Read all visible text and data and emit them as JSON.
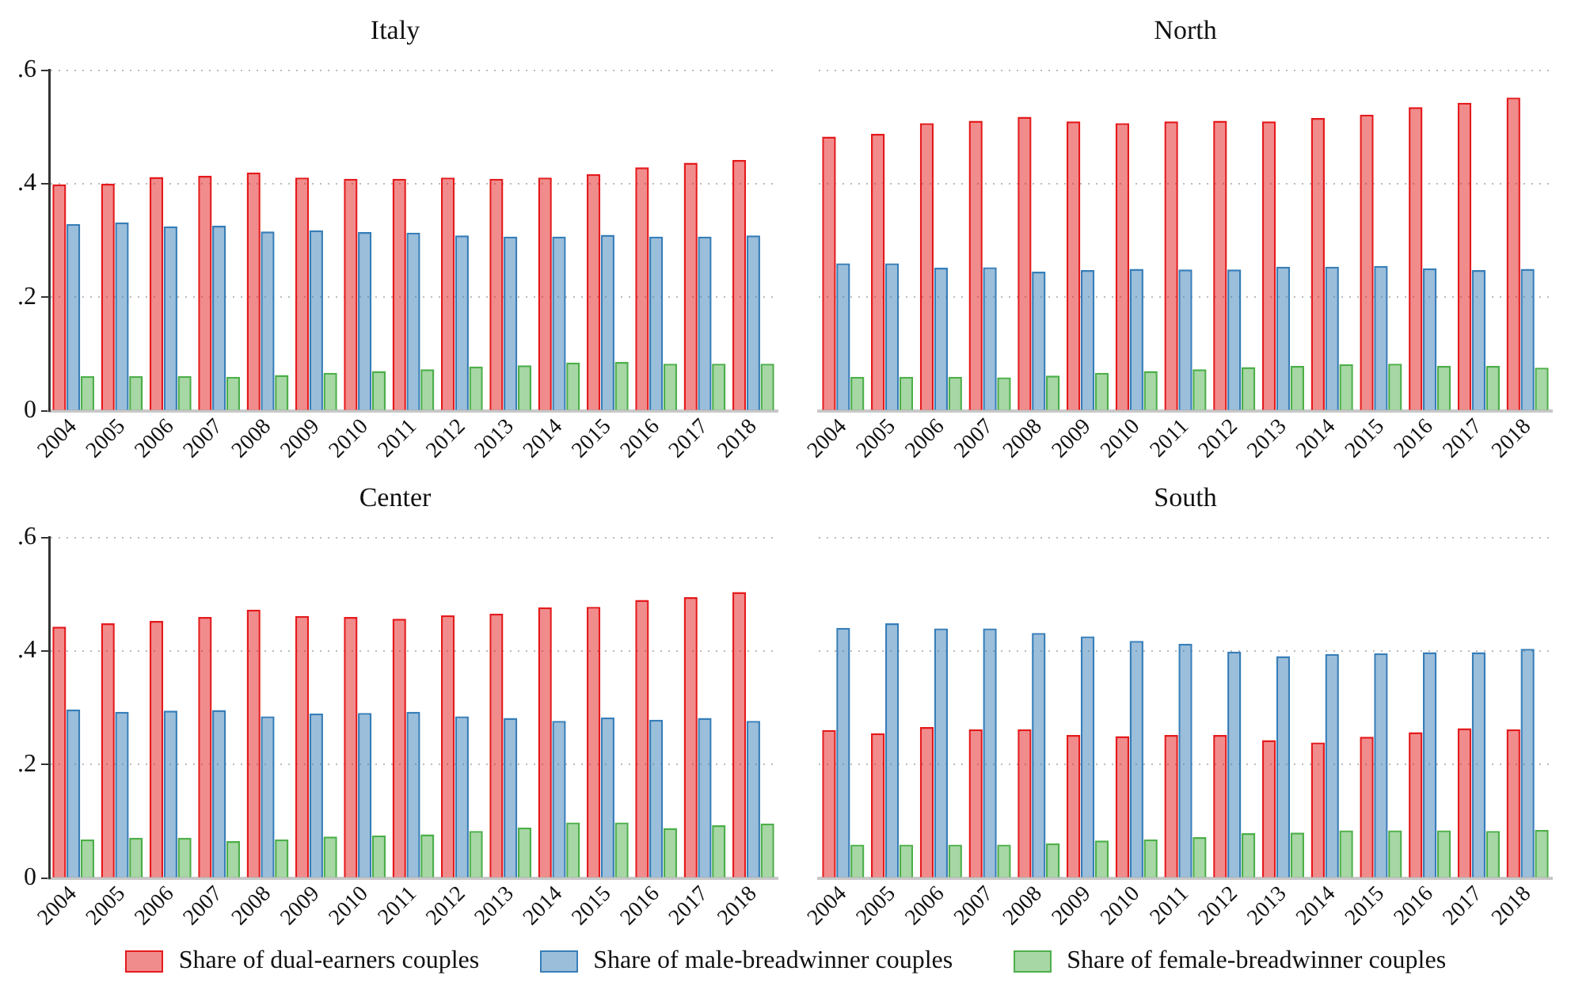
{
  "chart_data": [
    {
      "type": "bar",
      "title": "Italy",
      "categories": [
        "2004",
        "2005",
        "2006",
        "2007",
        "2008",
        "2009",
        "2010",
        "2011",
        "2012",
        "2013",
        "2014",
        "2015",
        "2016",
        "2017",
        "2018"
      ],
      "ylim": [
        0,
        0.6
      ],
      "yticks": [
        {
          "value": 0,
          "label": "0"
        },
        {
          "value": 0.2,
          "label": ".2"
        },
        {
          "value": 0.4,
          "label": ".4"
        },
        {
          "value": 0.6,
          "label": ".6"
        }
      ],
      "grid": "y",
      "series": [
        {
          "color": "#e41a1c",
          "values": [
            0.399,
            0.4,
            0.412,
            0.414,
            0.42,
            0.411,
            0.409,
            0.409,
            0.411,
            0.409,
            0.411,
            0.417,
            0.429,
            0.437,
            0.442
          ]
        },
        {
          "color": "#377eb8",
          "values": [
            0.329,
            0.332,
            0.325,
            0.326,
            0.316,
            0.318,
            0.315,
            0.314,
            0.309,
            0.307,
            0.307,
            0.31,
            0.307,
            0.307,
            0.309
          ]
        },
        {
          "color": "#4daf4a",
          "values": [
            0.061,
            0.061,
            0.061,
            0.06,
            0.063,
            0.067,
            0.07,
            0.073,
            0.078,
            0.08,
            0.085,
            0.086,
            0.083,
            0.083,
            0.083
          ]
        }
      ]
    },
    {
      "type": "bar",
      "title": "North",
      "categories": [
        "2004",
        "2005",
        "2006",
        "2007",
        "2008",
        "2009",
        "2010",
        "2011",
        "2012",
        "2013",
        "2014",
        "2015",
        "2016",
        "2017",
        "2018"
      ],
      "ylim": [
        0,
        0.6
      ],
      "yticks": [
        {
          "value": 0,
          "label": null
        },
        {
          "value": 0.2,
          "label": null
        },
        {
          "value": 0.4,
          "label": null
        },
        {
          "value": 0.6,
          "label": null
        }
      ],
      "grid": "y",
      "tick_labels": "x",
      "series": [
        {
          "color": "#e41a1c",
          "values": [
            0.483,
            0.488,
            0.507,
            0.511,
            0.518,
            0.51,
            0.507,
            0.51,
            0.511,
            0.51,
            0.516,
            0.522,
            0.535,
            0.543,
            0.552
          ]
        },
        {
          "color": "#377eb8",
          "values": [
            0.26,
            0.26,
            0.252,
            0.253,
            0.245,
            0.248,
            0.25,
            0.249,
            0.249,
            0.254,
            0.254,
            0.255,
            0.251,
            0.248,
            0.25
          ]
        },
        {
          "color": "#4daf4a",
          "values": [
            0.06,
            0.06,
            0.06,
            0.059,
            0.062,
            0.067,
            0.07,
            0.073,
            0.077,
            0.079,
            0.082,
            0.083,
            0.079,
            0.079,
            0.076
          ]
        }
      ]
    },
    {
      "type": "bar",
      "title": "Center",
      "categories": [
        "2004",
        "2005",
        "2006",
        "2007",
        "2008",
        "2009",
        "2010",
        "2011",
        "2012",
        "2013",
        "2014",
        "2015",
        "2016",
        "2017",
        "2018"
      ],
      "ylim": [
        0,
        0.6
      ],
      "yticks": [
        {
          "value": 0,
          "label": "0"
        },
        {
          "value": 0.2,
          "label": ".2"
        },
        {
          "value": 0.4,
          "label": ".4"
        },
        {
          "value": 0.6,
          "label": ".6"
        }
      ],
      "grid": "y",
      "series": [
        {
          "color": "#e41a1c",
          "values": [
            0.443,
            0.449,
            0.453,
            0.46,
            0.473,
            0.462,
            0.46,
            0.457,
            0.463,
            0.466,
            0.477,
            0.478,
            0.49,
            0.495,
            0.504
          ]
        },
        {
          "color": "#377eb8",
          "values": [
            0.297,
            0.293,
            0.295,
            0.296,
            0.285,
            0.29,
            0.291,
            0.293,
            0.285,
            0.282,
            0.277,
            0.283,
            0.279,
            0.282,
            0.277
          ]
        },
        {
          "color": "#4daf4a",
          "values": [
            0.068,
            0.071,
            0.071,
            0.065,
            0.068,
            0.073,
            0.075,
            0.077,
            0.083,
            0.089,
            0.098,
            0.098,
            0.088,
            0.093,
            0.096
          ]
        }
      ]
    },
    {
      "type": "bar",
      "title": "South",
      "categories": [
        "2004",
        "2005",
        "2006",
        "2007",
        "2008",
        "2009",
        "2010",
        "2011",
        "2012",
        "2013",
        "2014",
        "2015",
        "2016",
        "2017",
        "2018"
      ],
      "ylim": [
        0,
        0.6
      ],
      "yticks": [
        {
          "value": 0,
          "label": null
        },
        {
          "value": 0.2,
          "label": null
        },
        {
          "value": 0.4,
          "label": null
        },
        {
          "value": 0.6,
          "label": null
        }
      ],
      "grid": "y",
      "tick_labels": "x",
      "legend": "bottom",
      "series": [
        {
          "name": "Share of dual-earners couples",
          "color": "#e41a1c",
          "values": [
            0.261,
            0.255,
            0.266,
            0.262,
            0.262,
            0.252,
            0.25,
            0.252,
            0.252,
            0.243,
            0.239,
            0.249,
            0.257,
            0.264,
            0.262
          ]
        },
        {
          "name": "Share of male-breadwinner couples",
          "color": "#377eb8",
          "values": [
            0.441,
            0.449,
            0.44,
            0.44,
            0.432,
            0.426,
            0.418,
            0.413,
            0.399,
            0.391,
            0.395,
            0.396,
            0.398,
            0.398,
            0.404
          ]
        },
        {
          "name": "Share of female-breadwinner couples",
          "color": "#4daf4a",
          "values": [
            0.059,
            0.059,
            0.059,
            0.059,
            0.061,
            0.066,
            0.068,
            0.072,
            0.079,
            0.08,
            0.084,
            0.084,
            0.084,
            0.083,
            0.085
          ]
        }
      ]
    }
  ]
}
